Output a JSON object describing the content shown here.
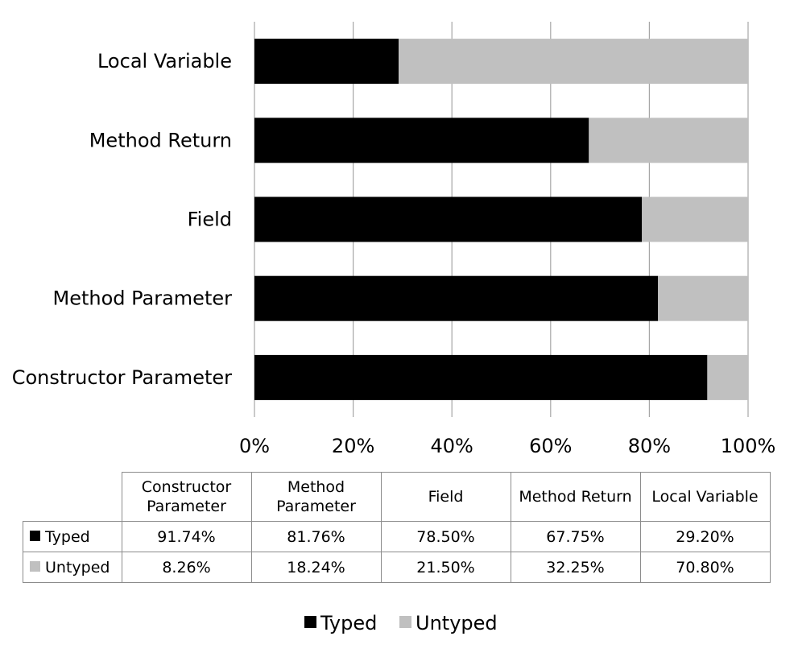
{
  "chart_data": {
    "type": "bar",
    "orientation": "horizontal",
    "stacked": "100%",
    "categories": [
      "Constructor Parameter",
      "Method Parameter",
      "Field",
      "Method Return",
      "Local Variable"
    ],
    "series": [
      {
        "name": "Typed",
        "color": "#000000",
        "values": [
          91.74,
          81.76,
          78.5,
          67.75,
          29.2
        ]
      },
      {
        "name": "Untyped",
        "color": "#c0c0c0",
        "values": [
          8.26,
          18.24,
          21.5,
          32.25,
          70.8
        ]
      }
    ],
    "xlim": [
      0,
      100
    ],
    "xticks": [
      "0%",
      "20%",
      "40%",
      "60%",
      "80%",
      "100%"
    ],
    "grid": true,
    "legend": "bottom",
    "table": {
      "columns": [
        "Constructor Parameter",
        "Method Parameter",
        "Field",
        "Method Return",
        "Local Variable"
      ],
      "rows": [
        {
          "label": "Typed",
          "values": [
            "91.74%",
            "81.76%",
            "78.50%",
            "67.75%",
            "29.20%"
          ]
        },
        {
          "label": "Untyped",
          "values": [
            "8.26%",
            "18.24%",
            "21.50%",
            "32.25%",
            "70.80%"
          ]
        }
      ]
    }
  }
}
